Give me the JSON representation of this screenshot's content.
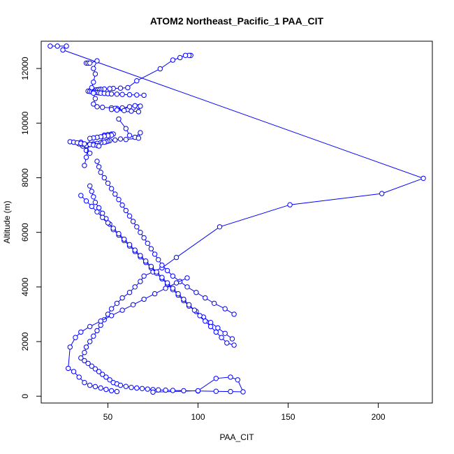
{
  "chart_data": {
    "type": "line",
    "title": "ATOM2 Northeast_Pacific_1 PAA_CIT",
    "xlabel": "PAA_CIT",
    "ylabel": "Altitude (m)",
    "xlim": [
      13,
      230
    ],
    "ylim": [
      -250,
      13000
    ],
    "x_ticks": [
      50,
      100,
      150,
      200
    ],
    "y_ticks": [
      0,
      2000,
      4000,
      6000,
      8000,
      10000,
      12000
    ],
    "grid": false,
    "series_color": "#0000ff",
    "marker": "open-circle",
    "series": [
      {
        "x": [
          18,
          22,
          27,
          25,
          225,
          202,
          151,
          112,
          88,
          80,
          75,
          70,
          68,
          65,
          62,
          58,
          55,
          52,
          50,
          48,
          46,
          44,
          42,
          40,
          38,
          37,
          35,
          37,
          39,
          41,
          43,
          45,
          47,
          49,
          51,
          53,
          55,
          57,
          60,
          63,
          66,
          69,
          72,
          75,
          78,
          82,
          86,
          92,
          100,
          110,
          118,
          125,
          122,
          118,
          110,
          100,
          75
        ],
        "y": [
          12820,
          12820,
          12820,
          12680,
          7980,
          7420,
          7010,
          6200,
          5080,
          4700,
          4550,
          4400,
          4200,
          4000,
          3800,
          3600,
          3400,
          3200,
          3000,
          2800,
          2600,
          2400,
          2200,
          2000,
          1800,
          1600,
          1400,
          1300,
          1200,
          1100,
          1000,
          900,
          800,
          700,
          600,
          500,
          450,
          400,
          360,
          320,
          300,
          280,
          260,
          240,
          230,
          220,
          210,
          200,
          190,
          180,
          170,
          160,
          600,
          700,
          650,
          200,
          150
        ]
      },
      {
        "x": [
          96,
          95,
          93,
          90,
          86,
          79,
          66,
          61,
          57,
          53,
          51,
          48,
          46,
          45,
          44,
          43,
          42,
          41,
          40,
          39,
          40,
          41,
          42,
          43,
          44,
          45,
          46,
          48,
          50,
          52,
          55,
          58,
          62,
          66,
          70
        ],
        "y": [
          12480,
          12480,
          12480,
          12400,
          12310,
          11990,
          11550,
          11300,
          11280,
          11270,
          11260,
          11250,
          11240,
          11230,
          11220,
          11210,
          11200,
          11190,
          11180,
          11170,
          11160,
          11150,
          11140,
          11130,
          11120,
          11110,
          11100,
          11090,
          11080,
          11070,
          11060,
          11050,
          11040,
          11030,
          11020
        ]
      },
      {
        "x": [
          38,
          39,
          40,
          44,
          42,
          43,
          42,
          41,
          42,
          43,
          42,
          44,
          47,
          52,
          55,
          58,
          61,
          64,
          67,
          68,
          65,
          62,
          58,
          54,
          52,
          55,
          59,
          63,
          67
        ],
        "y": [
          12200,
          12200,
          12200,
          12280,
          12000,
          11800,
          11500,
          11300,
          11100,
          10900,
          10700,
          10600,
          10580,
          10560,
          10540,
          10520,
          10500,
          10550,
          10600,
          10620,
          10640,
          10600,
          10560,
          10540,
          10500,
          10480,
          10460,
          10440,
          10420
        ]
      },
      {
        "x": [
          56,
          60,
          62,
          65,
          68,
          67,
          60,
          57,
          54,
          51,
          50,
          49,
          48,
          46,
          44,
          42,
          40,
          39,
          38,
          36,
          35,
          34,
          36,
          38,
          40
        ],
        "y": [
          10150,
          9800,
          9550,
          9480,
          9650,
          9450,
          9400,
          9420,
          9380,
          9360,
          9340,
          9320,
          9300,
          9280,
          9260,
          9240,
          9220,
          9200,
          9180,
          9160,
          9300,
          9240,
          9230,
          9000,
          8900
        ]
      },
      {
        "x": [
          29,
          31,
          33,
          35,
          37,
          40,
          42,
          44,
          45,
          48,
          50,
          52,
          53,
          52,
          50,
          48,
          46,
          44,
          42,
          40,
          38,
          37
        ],
        "y": [
          9320,
          9300,
          9280,
          9260,
          9240,
          9220,
          9200,
          9180,
          9160,
          9560,
          9580,
          9600,
          9600,
          9560,
          9540,
          9520,
          9500,
          9480,
          9460,
          9440,
          8750,
          8450
        ]
      },
      {
        "x": [
          44,
          45,
          46,
          48,
          50,
          52,
          54,
          56,
          58,
          60,
          62,
          64,
          66,
          68,
          70,
          72,
          74,
          76,
          78,
          80,
          83,
          86,
          90,
          94,
          99,
          104,
          109,
          115,
          120
        ],
        "y": [
          8600,
          8400,
          8200,
          8000,
          7800,
          7600,
          7400,
          7200,
          7000,
          6800,
          6600,
          6400,
          6200,
          6000,
          5800,
          5600,
          5400,
          5200,
          5000,
          4800,
          4600,
          4400,
          4200,
          4000,
          3800,
          3600,
          3400,
          3200,
          3000
        ]
      },
      {
        "x": [
          40,
          41,
          42,
          43,
          45,
          47,
          49,
          51,
          53,
          56,
          59,
          62,
          65,
          68,
          71,
          74,
          77,
          80,
          83,
          86,
          89,
          92,
          95,
          99,
          103,
          107,
          111,
          115,
          119
        ],
        "y": [
          7700,
          7500,
          7300,
          7100,
          6900,
          6700,
          6500,
          6300,
          6100,
          5900,
          5700,
          5500,
          5300,
          5100,
          4900,
          4700,
          4500,
          4300,
          4100,
          3900,
          3700,
          3500,
          3300,
          3100,
          2900,
          2700,
          2500,
          2300,
          2100
        ]
      },
      {
        "x": [
          35,
          38,
          41,
          44,
          47,
          50,
          53,
          56,
          59,
          62,
          65,
          68,
          71,
          74,
          77,
          80,
          83,
          86,
          89,
          92,
          95,
          98,
          101,
          104,
          107,
          110,
          113,
          116,
          120
        ],
        "y": [
          7350,
          7150,
          6950,
          6750,
          6550,
          6350,
          6150,
          5950,
          5750,
          5550,
          5350,
          5150,
          4950,
          4750,
          4550,
          4350,
          4150,
          3950,
          3750,
          3550,
          3350,
          3150,
          2950,
          2750,
          2550,
          2350,
          2150,
          1950,
          1870
        ]
      },
      {
        "x": [
          94,
          88,
          82,
          76,
          70,
          64,
          58,
          52,
          46,
          40,
          35,
          32,
          29,
          28,
          31,
          34,
          37,
          40,
          43,
          46,
          49,
          52,
          55
        ],
        "y": [
          4330,
          4150,
          3950,
          3750,
          3550,
          3350,
          3150,
          2950,
          2750,
          2550,
          2350,
          2150,
          1800,
          1020,
          900,
          700,
          500,
          400,
          350,
          300,
          250,
          200,
          170
        ]
      }
    ]
  }
}
